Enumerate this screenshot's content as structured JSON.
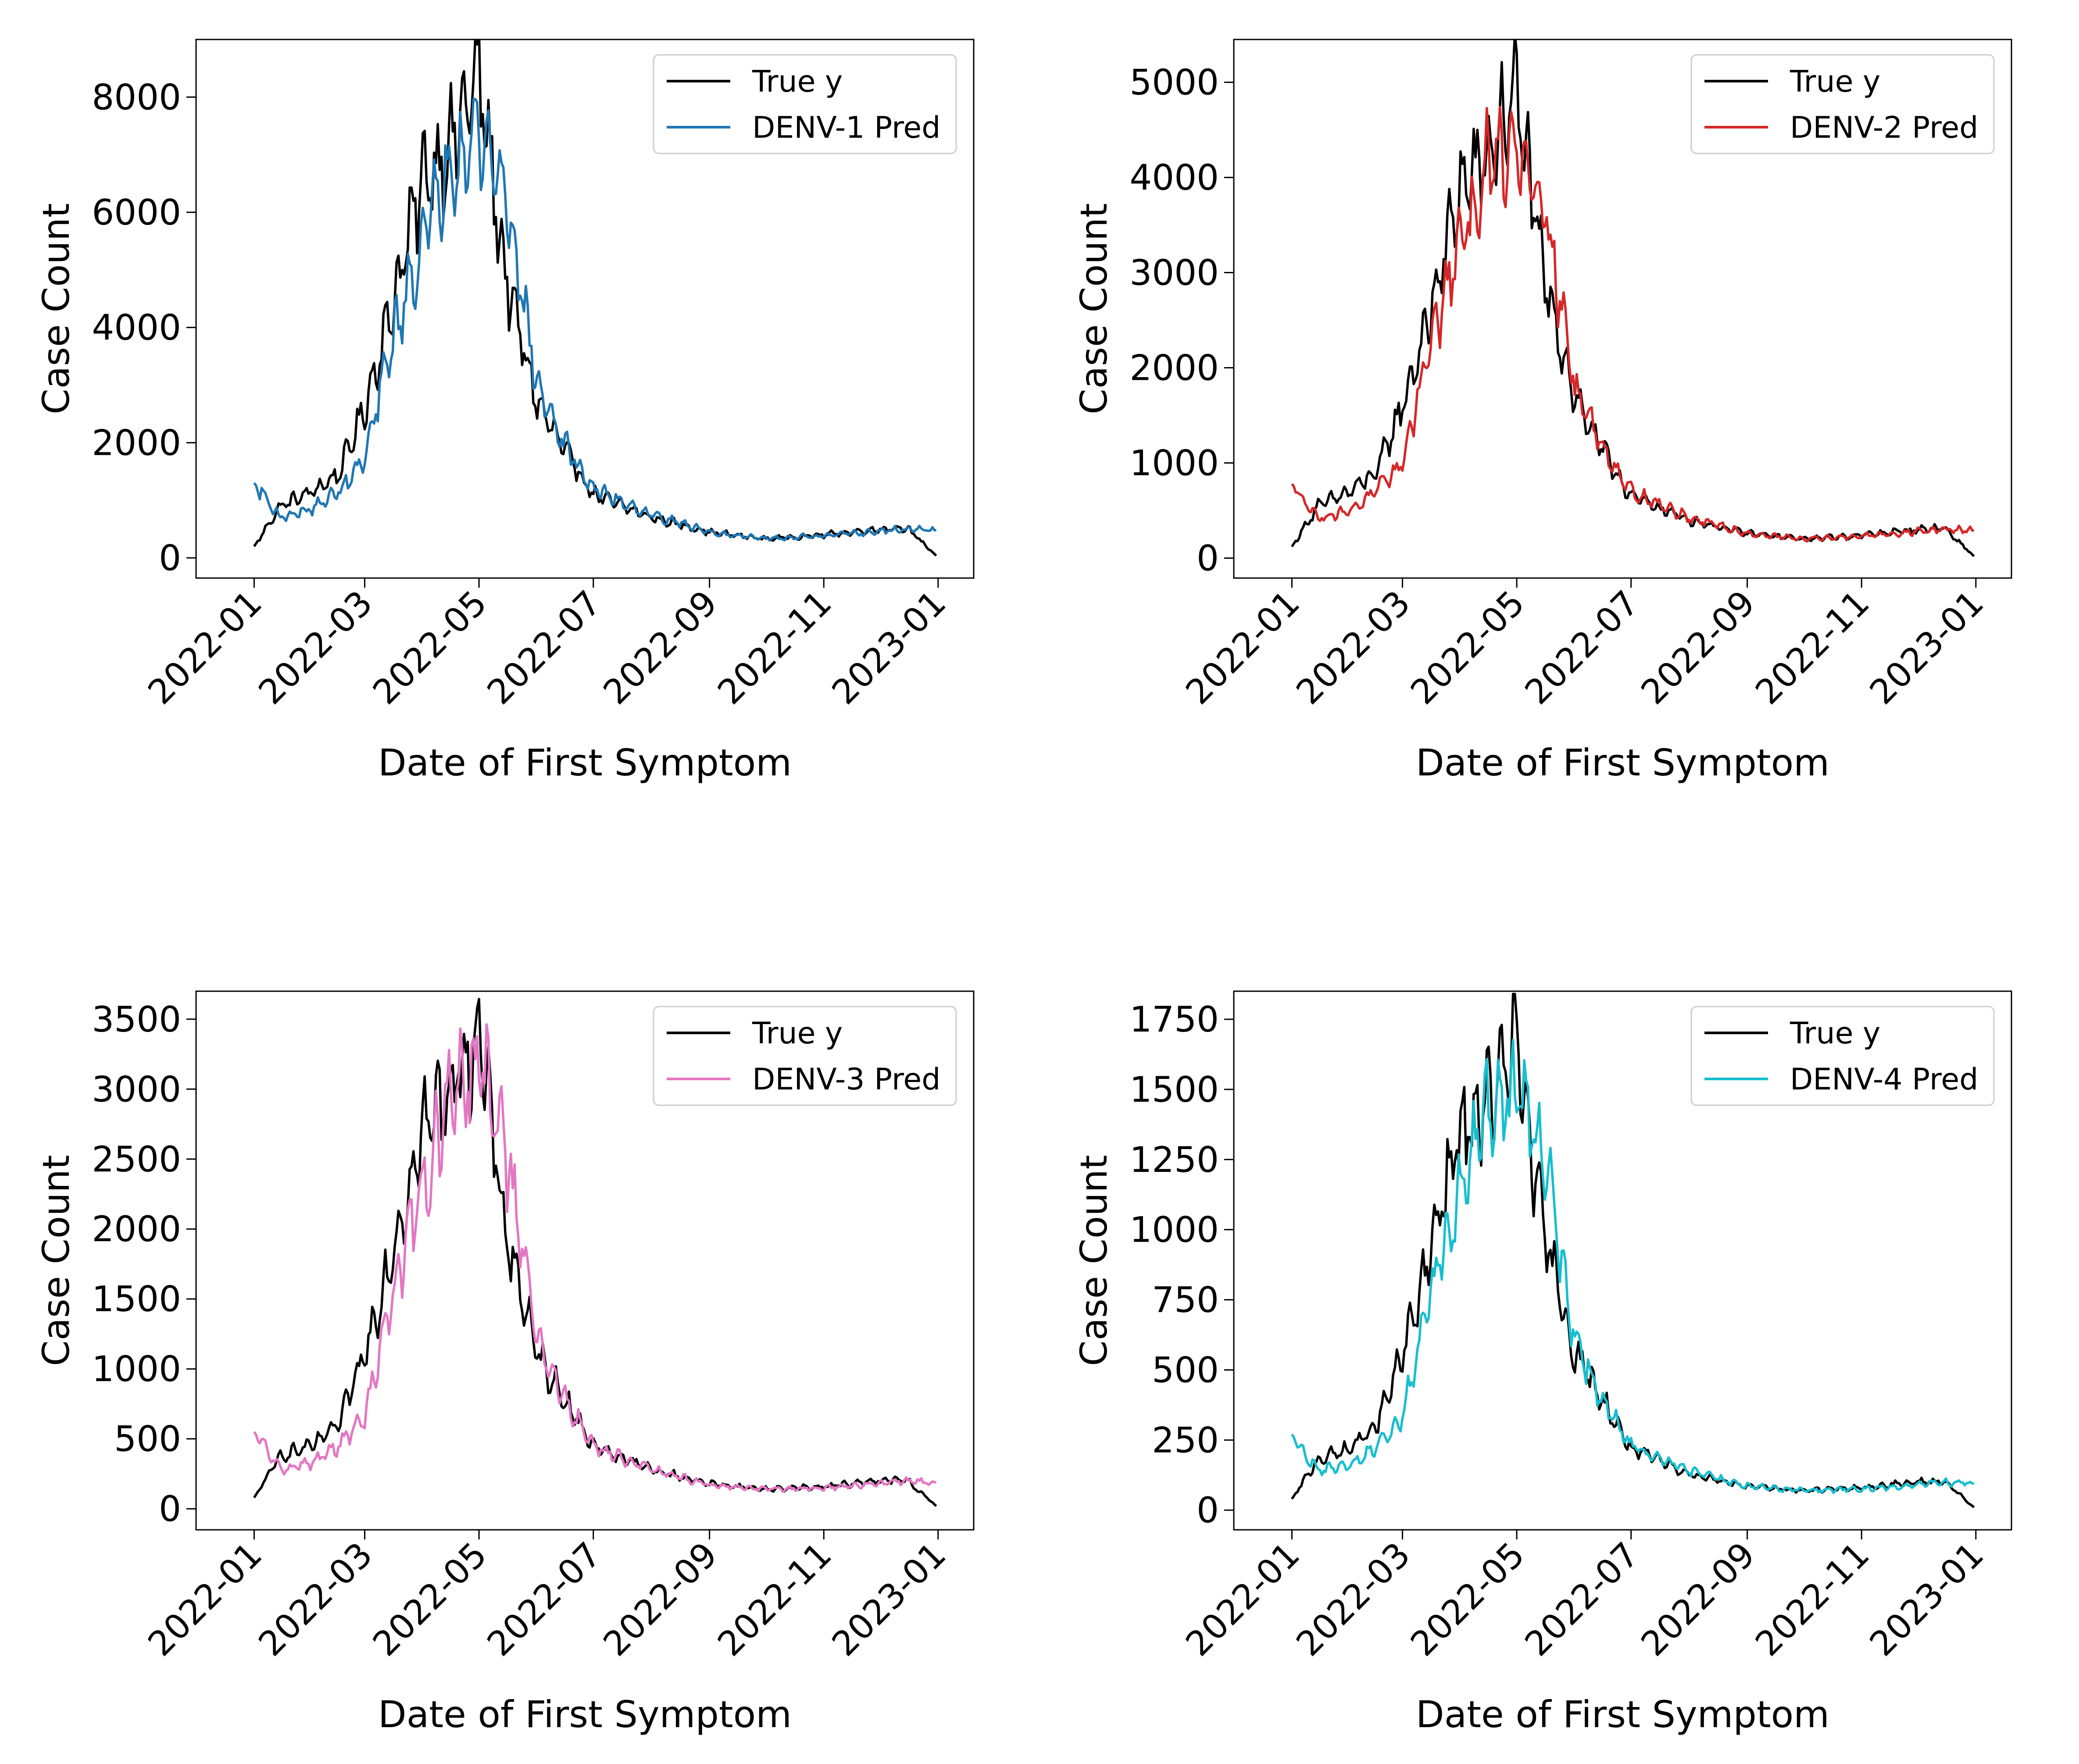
{
  "chart_data": [
    {
      "type": "line",
      "xlabel": "Date of First Symptom",
      "ylabel": "Case Count",
      "xlim": [
        "2021-12-01",
        "2023-01-20"
      ],
      "ylim": [
        -350,
        9000
      ],
      "xticks": [
        "2022-01",
        "2022-03",
        "2022-05",
        "2022-07",
        "2022-09",
        "2022-11",
        "2023-01"
      ],
      "yticks": [
        0,
        2000,
        4000,
        6000,
        8000
      ],
      "legend": "top-right",
      "series": [
        {
          "name": "True y",
          "color": "#000000",
          "x": [
            "2022-01-01",
            "2022-01-15",
            "2022-02-01",
            "2022-02-15",
            "2022-03-01",
            "2022-03-15",
            "2022-04-01",
            "2022-04-15",
            "2022-05-01",
            "2022-05-15",
            "2022-06-01",
            "2022-06-15",
            "2022-07-01",
            "2022-08-01",
            "2022-09-01",
            "2022-10-01",
            "2022-11-01",
            "2022-12-01",
            "2022-12-15",
            "2022-12-31"
          ],
          "values": [
            200,
            900,
            1150,
            1450,
            2600,
            4300,
            6600,
            7100,
            8400,
            4900,
            2700,
            1900,
            1100,
            700,
            450,
            330,
            400,
            500,
            530,
            40
          ]
        },
        {
          "name": "DENV-1 Pred",
          "color": "#1f77b4",
          "x": [
            "2022-01-01",
            "2022-01-15",
            "2022-02-01",
            "2022-02-15",
            "2022-03-01",
            "2022-03-15",
            "2022-04-01",
            "2022-04-15",
            "2022-05-01",
            "2022-05-15",
            "2022-06-01",
            "2022-06-15",
            "2022-07-01",
            "2022-08-01",
            "2022-09-01",
            "2022-10-01",
            "2022-11-01",
            "2022-12-01",
            "2022-12-15",
            "2022-12-31"
          ],
          "values": [
            1300,
            700,
            850,
            1150,
            1700,
            3700,
            5500,
            6900,
            7400,
            6400,
            3000,
            2000,
            1200,
            750,
            450,
            330,
            380,
            460,
            500,
            480
          ]
        }
      ]
    },
    {
      "type": "line",
      "xlabel": "Date of First Symptom",
      "ylabel": "Case Count",
      "xlim": [
        "2021-12-01",
        "2023-01-20"
      ],
      "ylim": [
        -210,
        5450
      ],
      "xticks": [
        "2022-01",
        "2022-03",
        "2022-05",
        "2022-07",
        "2022-09",
        "2022-11",
        "2023-01"
      ],
      "yticks": [
        0,
        1000,
        2000,
        3000,
        4000,
        5000
      ],
      "legend": "top-right",
      "series": [
        {
          "name": "True y",
          "color": "#000000",
          "x": [
            "2022-01-01",
            "2022-01-15",
            "2022-02-01",
            "2022-02-15",
            "2022-03-01",
            "2022-03-15",
            "2022-04-01",
            "2022-04-15",
            "2022-05-01",
            "2022-05-15",
            "2022-06-01",
            "2022-06-15",
            "2022-07-01",
            "2022-08-01",
            "2022-09-01",
            "2022-10-01",
            "2022-11-01",
            "2022-12-01",
            "2022-12-15",
            "2022-12-31"
          ],
          "values": [
            120,
            550,
            700,
            900,
            1600,
            2500,
            3900,
            4200,
            4900,
            3000,
            1700,
            1150,
            650,
            400,
            260,
            200,
            240,
            300,
            320,
            20
          ]
        },
        {
          "name": "DENV-2 Pred",
          "color": "#d62728",
          "x": [
            "2022-01-01",
            "2022-01-15",
            "2022-02-01",
            "2022-02-15",
            "2022-03-01",
            "2022-03-15",
            "2022-04-01",
            "2022-04-15",
            "2022-05-01",
            "2022-05-15",
            "2022-06-01",
            "2022-06-15",
            "2022-07-01",
            "2022-08-01",
            "2022-09-01",
            "2022-10-01",
            "2022-11-01",
            "2022-12-01",
            "2022-12-15",
            "2022-12-31"
          ],
          "values": [
            780,
            420,
            500,
            700,
            1000,
            2200,
            3300,
            4100,
            4400,
            3800,
            1800,
            1200,
            700,
            420,
            260,
            200,
            230,
            280,
            300,
            290
          ]
        }
      ]
    },
    {
      "type": "line",
      "xlabel": "Date of First Symptom",
      "ylabel": "Case Count",
      "xlim": [
        "2021-12-01",
        "2023-01-20"
      ],
      "ylim": [
        -150,
        3700
      ],
      "xticks": [
        "2022-01",
        "2022-03",
        "2022-05",
        "2022-07",
        "2022-09",
        "2022-11",
        "2023-01"
      ],
      "yticks": [
        0,
        500,
        1000,
        1500,
        2000,
        2500,
        3000,
        3500
      ],
      "legend": "top-right",
      "series": [
        {
          "name": "True y",
          "color": "#000000",
          "x": [
            "2022-01-01",
            "2022-01-15",
            "2022-02-01",
            "2022-02-15",
            "2022-03-01",
            "2022-03-15",
            "2022-04-01",
            "2022-04-15",
            "2022-05-01",
            "2022-05-15",
            "2022-06-01",
            "2022-06-15",
            "2022-07-01",
            "2022-08-01",
            "2022-09-01",
            "2022-10-01",
            "2022-11-01",
            "2022-12-01",
            "2022-12-15",
            "2022-12-31"
          ],
          "values": [
            80,
            380,
            450,
            600,
            1100,
            1800,
            2700,
            3000,
            3400,
            2000,
            1100,
            800,
            450,
            280,
            180,
            140,
            160,
            200,
            210,
            20
          ]
        },
        {
          "name": "DENV-3 Pred",
          "color": "#e377c2",
          "x": [
            "2022-01-01",
            "2022-01-15",
            "2022-02-01",
            "2022-02-15",
            "2022-03-01",
            "2022-03-15",
            "2022-04-01",
            "2022-04-15",
            "2022-05-01",
            "2022-05-15",
            "2022-06-01",
            "2022-06-15",
            "2022-07-01",
            "2022-08-01",
            "2022-09-01",
            "2022-10-01",
            "2022-11-01",
            "2022-12-01",
            "2022-12-15",
            "2022-12-31"
          ],
          "values": [
            550,
            280,
            330,
            450,
            650,
            1500,
            2300,
            2900,
            3200,
            2600,
            1200,
            800,
            450,
            280,
            170,
            140,
            150,
            180,
            200,
            190
          ]
        }
      ]
    },
    {
      "type": "line",
      "xlabel": "Date of First Symptom",
      "ylabel": "Case Count",
      "xlim": [
        "2021-12-01",
        "2023-01-20"
      ],
      "ylim": [
        -70,
        1850
      ],
      "xticks": [
        "2022-01",
        "2022-03",
        "2022-05",
        "2022-07",
        "2022-09",
        "2022-11",
        "2023-01"
      ],
      "yticks": [
        0,
        250,
        500,
        750,
        1000,
        1250,
        1500,
        1750
      ],
      "legend": "top-right",
      "series": [
        {
          "name": "True y",
          "color": "#000000",
          "x": [
            "2022-01-01",
            "2022-01-15",
            "2022-02-01",
            "2022-02-15",
            "2022-03-01",
            "2022-03-15",
            "2022-04-01",
            "2022-04-15",
            "2022-05-01",
            "2022-05-15",
            "2022-06-01",
            "2022-06-15",
            "2022-07-01",
            "2022-08-01",
            "2022-09-01",
            "2022-10-01",
            "2022-11-01",
            "2022-12-01",
            "2022-12-15",
            "2022-12-31"
          ],
          "values": [
            40,
            180,
            220,
            300,
            550,
            900,
            1350,
            1450,
            1650,
            1000,
            560,
            400,
            220,
            130,
            85,
            70,
            80,
            100,
            105,
            10
          ]
        },
        {
          "name": "DENV-4 Pred",
          "color": "#17becf",
          "x": [
            "2022-01-01",
            "2022-01-15",
            "2022-02-01",
            "2022-02-15",
            "2022-03-01",
            "2022-03-15",
            "2022-04-01",
            "2022-04-15",
            "2022-05-01",
            "2022-05-15",
            "2022-06-01",
            "2022-06-15",
            "2022-07-01",
            "2022-08-01",
            "2022-09-01",
            "2022-10-01",
            "2022-11-01",
            "2022-12-01",
            "2022-12-15",
            "2022-12-31"
          ],
          "values": [
            270,
            140,
            160,
            220,
            330,
            750,
            1150,
            1450,
            1500,
            1300,
            600,
            400,
            230,
            140,
            85,
            70,
            75,
            90,
            100,
            95
          ]
        }
      ]
    }
  ]
}
